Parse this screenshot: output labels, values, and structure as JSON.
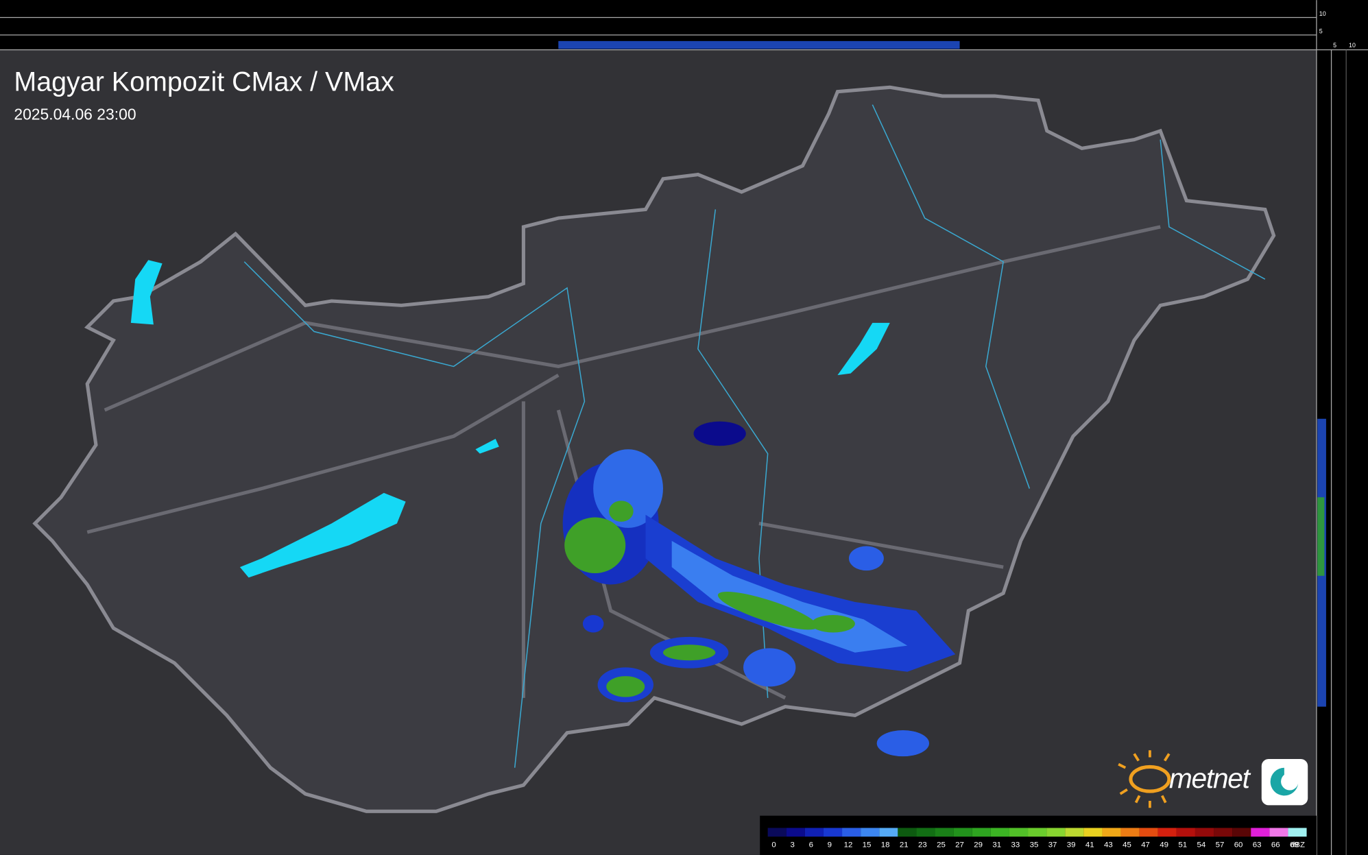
{
  "header": {
    "title": "Magyar Kompozit CMax / VMax",
    "timestamp": "2025.04.06 23:00"
  },
  "side_scale": {
    "top_labels": [
      "10",
      "5"
    ],
    "bottom_labels": [
      "5",
      "10"
    ]
  },
  "legend": {
    "unit": "dBZ",
    "steps": [
      {
        "label": "0",
        "color": "#0a0a5a"
      },
      {
        "label": "3",
        "color": "#0b0b8c"
      },
      {
        "label": "6",
        "color": "#1020b4"
      },
      {
        "label": "9",
        "color": "#1838d0"
      },
      {
        "label": "12",
        "color": "#2a5ee6"
      },
      {
        "label": "15",
        "color": "#3c86f0"
      },
      {
        "label": "18",
        "color": "#55aaf5"
      },
      {
        "label": "21",
        "color": "#0d5a10"
      },
      {
        "label": "23",
        "color": "#126e14"
      },
      {
        "label": "25",
        "color": "#1a8018"
      },
      {
        "label": "27",
        "color": "#22921c"
      },
      {
        "label": "29",
        "color": "#2ea420"
      },
      {
        "label": "31",
        "color": "#3cb424"
      },
      {
        "label": "33",
        "color": "#52c028"
      },
      {
        "label": "35",
        "color": "#6acc2c"
      },
      {
        "label": "37",
        "color": "#88d430"
      },
      {
        "label": "39",
        "color": "#bcd830"
      },
      {
        "label": "41",
        "color": "#e8d020"
      },
      {
        "label": "43",
        "color": "#f0a818"
      },
      {
        "label": "45",
        "color": "#ec7c14"
      },
      {
        "label": "47",
        "color": "#e44c10"
      },
      {
        "label": "49",
        "color": "#d4200e"
      },
      {
        "label": "51",
        "color": "#b4100c"
      },
      {
        "label": "54",
        "color": "#940a0a"
      },
      {
        "label": "57",
        "color": "#780808"
      },
      {
        "label": "60",
        "color": "#5a0606"
      },
      {
        "label": "63",
        "color": "#e020d8"
      },
      {
        "label": "66",
        "color": "#f078e8"
      },
      {
        "label": "69",
        "color": "#a0f0f0"
      }
    ]
  },
  "logo": {
    "text": "metnet"
  }
}
